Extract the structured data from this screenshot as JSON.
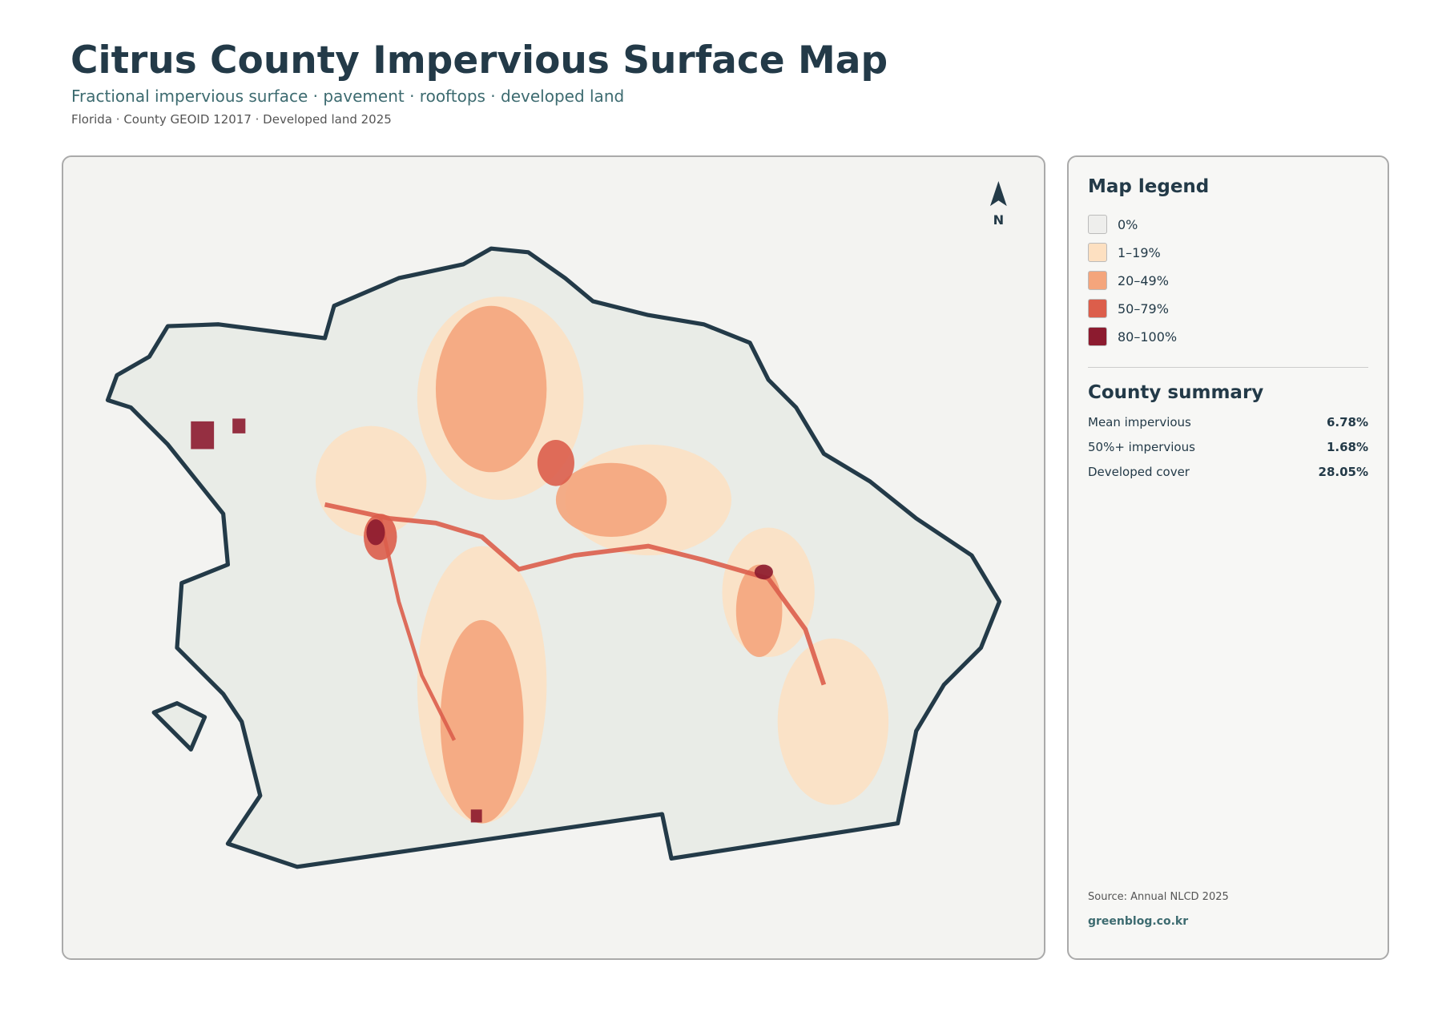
{
  "header": {
    "title": "Citrus County Impervious Surface Map",
    "subtitle": "Fractional impervious surface · pavement · rooftops · developed land",
    "meta": "Florida · County GEOID 12017 · Developed land 2025"
  },
  "map": {
    "north": "N",
    "land_color": "#e9ece7",
    "outline_color": "#233a48"
  },
  "legend": {
    "title": "Map legend",
    "items": [
      {
        "label": "0%",
        "color": "#eeeeec"
      },
      {
        "label": "1–19%",
        "color": "#fde0c1"
      },
      {
        "label": "20–49%",
        "color": "#f4a57c"
      },
      {
        "label": "50–79%",
        "color": "#dc5e4b"
      },
      {
        "label": "80–100%",
        "color": "#8c1b2f"
      }
    ]
  },
  "summary": {
    "title": "County summary",
    "rows": [
      {
        "label": "Mean impervious",
        "value": "6.78%"
      },
      {
        "label": "50%+ impervious",
        "value": "1.68%"
      },
      {
        "label": "Developed cover",
        "value": "28.05%"
      }
    ]
  },
  "footer": {
    "source": "Source: Annual NLCD 2025",
    "site": "greenblog.co.kr"
  }
}
